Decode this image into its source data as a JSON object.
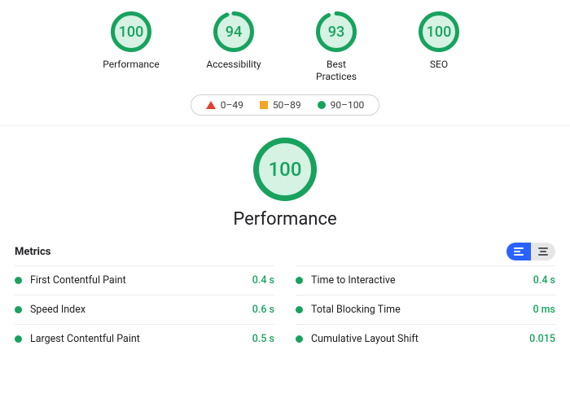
{
  "colors": {
    "green": "#18a25e",
    "green_soft": "#d5f2e3",
    "orange": "#f4a524",
    "red": "#e63d2e",
    "text": "#202124",
    "divider": "#ededed",
    "blue": "#2962ff",
    "grey_seg": "#e6e6e6"
  },
  "gauges": {
    "size_small": 50,
    "stroke_small": 5,
    "size_big": 78,
    "stroke_big": 7,
    "items": [
      {
        "key": "performance",
        "label": "Performance",
        "score": 100
      },
      {
        "key": "accessibility",
        "label": "Accessibility",
        "score": 94
      },
      {
        "key": "bestpractices",
        "label": "Best\nPractices",
        "score": 93
      },
      {
        "key": "seo",
        "label": "SEO",
        "score": 100
      }
    ]
  },
  "legend": {
    "items": [
      {
        "shape": "triangle",
        "range": "0–49"
      },
      {
        "shape": "square",
        "range": "50–89"
      },
      {
        "shape": "circle",
        "range": "90–100"
      }
    ]
  },
  "big": {
    "score": 100,
    "title": "Performance"
  },
  "metrics": {
    "header": "Metrics",
    "toggle_active": "left",
    "left": [
      {
        "name": "First Contentful Paint",
        "value": "0.4 s",
        "status": "good"
      },
      {
        "name": "Speed Index",
        "value": "0.6 s",
        "status": "good"
      },
      {
        "name": "Largest Contentful Paint",
        "value": "0.5 s",
        "status": "good"
      }
    ],
    "right": [
      {
        "name": "Time to Interactive",
        "value": "0.4 s",
        "status": "good"
      },
      {
        "name": "Total Blocking Time",
        "value": "0 ms",
        "status": "good"
      },
      {
        "name": "Cumulative Layout Shift",
        "value": "0.015",
        "status": "good"
      }
    ]
  }
}
